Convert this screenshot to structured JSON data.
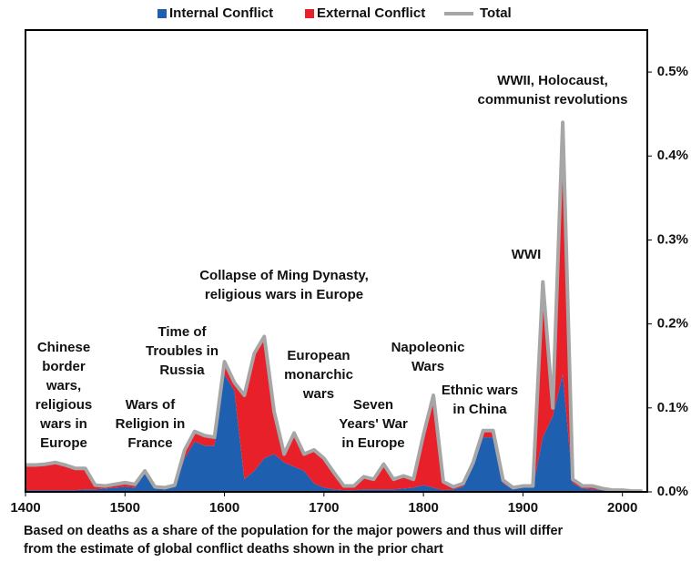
{
  "chart_data": {
    "type": "stacked-area",
    "legend": [
      "Internal Conflict",
      "External Conflict",
      "Total"
    ],
    "x": [
      1400,
      1410,
      1420,
      1430,
      1440,
      1450,
      1460,
      1470,
      1480,
      1490,
      1500,
      1510,
      1520,
      1530,
      1540,
      1550,
      1560,
      1570,
      1580,
      1590,
      1600,
      1610,
      1620,
      1630,
      1640,
      1650,
      1660,
      1670,
      1680,
      1690,
      1700,
      1710,
      1720,
      1730,
      1740,
      1750,
      1760,
      1770,
      1780,
      1790,
      1800,
      1810,
      1820,
      1830,
      1840,
      1850,
      1860,
      1870,
      1880,
      1890,
      1900,
      1910,
      1920,
      1930,
      1940,
      1950,
      1960,
      1970,
      1980,
      1990,
      2000,
      2010,
      2020
    ],
    "series": [
      {
        "name": "Internal Conflict",
        "color": "#1f5fb0",
        "values": [
          0.002,
          0.002,
          0.002,
          0.002,
          0.002,
          0.002,
          0.003,
          0.003,
          0.004,
          0.005,
          0.006,
          0.005,
          0.022,
          0.004,
          0.003,
          0.006,
          0.04,
          0.06,
          0.055,
          0.055,
          0.14,
          0.12,
          0.015,
          0.025,
          0.04,
          0.045,
          0.035,
          0.03,
          0.025,
          0.01,
          0.005,
          0.003,
          0.002,
          0.002,
          0.003,
          0.003,
          0.003,
          0.003,
          0.004,
          0.005,
          0.008,
          0.005,
          0.002,
          0.003,
          0.006,
          0.03,
          0.065,
          0.065,
          0.01,
          0.003,
          0.005,
          0.005,
          0.065,
          0.09,
          0.14,
          0.01,
          0.004,
          0.003,
          0.002,
          0.001,
          0.001,
          0.001,
          0.001
        ]
      },
      {
        "name": "External Conflict",
        "color": "#e8202a",
        "values": [
          0.03,
          0.03,
          0.031,
          0.033,
          0.03,
          0.026,
          0.025,
          0.005,
          0.003,
          0.004,
          0.005,
          0.004,
          0.003,
          0.002,
          0.002,
          0.002,
          0.01,
          0.012,
          0.012,
          0.01,
          0.015,
          0.01,
          0.1,
          0.14,
          0.145,
          0.05,
          0.01,
          0.04,
          0.02,
          0.04,
          0.035,
          0.02,
          0.005,
          0.005,
          0.015,
          0.012,
          0.03,
          0.012,
          0.015,
          0.01,
          0.06,
          0.11,
          0.01,
          0.003,
          0.004,
          0.005,
          0.008,
          0.008,
          0.004,
          0.002,
          0.002,
          0.002,
          0.185,
          0.01,
          0.3,
          0.005,
          0.003,
          0.004,
          0.002,
          0.001,
          0.001,
          0,
          0
        ]
      },
      {
        "name": "Total",
        "color": "#a6a6a6",
        "values": [
          0.032,
          0.032,
          0.033,
          0.035,
          0.032,
          0.028,
          0.028,
          0.008,
          0.007,
          0.009,
          0.011,
          0.009,
          0.025,
          0.006,
          0.005,
          0.008,
          0.05,
          0.072,
          0.067,
          0.065,
          0.155,
          0.13,
          0.115,
          0.165,
          0.185,
          0.095,
          0.045,
          0.07,
          0.045,
          0.05,
          0.04,
          0.023,
          0.007,
          0.007,
          0.018,
          0.015,
          0.033,
          0.015,
          0.019,
          0.015,
          0.068,
          0.115,
          0.012,
          0.006,
          0.01,
          0.035,
          0.073,
          0.073,
          0.014,
          0.005,
          0.007,
          0.007,
          0.25,
          0.1,
          0.44,
          0.015,
          0.007,
          0.007,
          0.004,
          0.002,
          0.002,
          0.001,
          0.001
        ]
      }
    ],
    "xlim": [
      1400,
      2025
    ],
    "xticks": [
      1400,
      1500,
      1600,
      1700,
      1800,
      1900,
      2000
    ],
    "ylim": [
      0,
      0.55
    ],
    "yticks": [
      {
        "value": 0,
        "label": "0.0%"
      },
      {
        "value": 0.1,
        "label": "0.1%"
      },
      {
        "value": 0.2,
        "label": "0.2%"
      },
      {
        "value": 0.3,
        "label": "0.3%"
      },
      {
        "value": 0.4,
        "label": "0.4%"
      },
      {
        "value": 0.5,
        "label": "0.5%"
      }
    ],
    "annotations": [
      [
        "Chinese",
        "border",
        "wars,",
        "religious",
        "wars in",
        "Europe"
      ],
      [
        "Wars of",
        "Religion in",
        "France"
      ],
      [
        "Time of",
        "Troubles in",
        "Russia"
      ],
      [
        "Collapse of Ming Dynasty,",
        "religious wars in Europe"
      ],
      [
        "European",
        "monarchic",
        "wars"
      ],
      [
        "Seven",
        "Years' War",
        "in Europe"
      ],
      [
        "Napoleonic",
        "Wars"
      ],
      [
        "Ethnic wars",
        "in China"
      ],
      [
        "WWI"
      ],
      [
        "WWII, Holocaust,",
        "communist revolutions"
      ]
    ],
    "footnote": [
      "Based on deaths as a share of the population for the major powers and thus will differ",
      "from the estimate of global conflict deaths shown in the prior chart"
    ]
  }
}
